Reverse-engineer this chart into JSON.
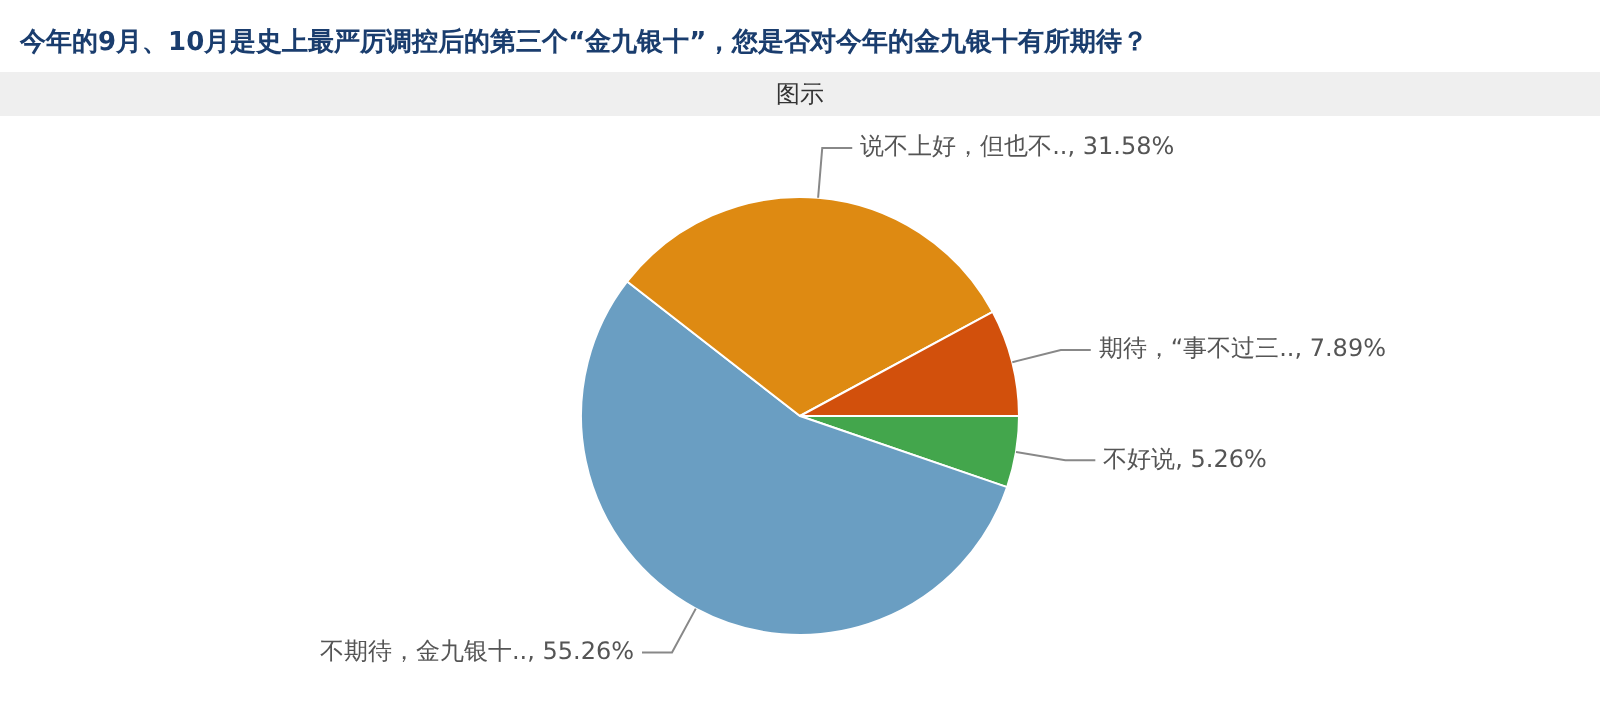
{
  "chart_data": {
    "type": "pie",
    "title": "今年的9月、10月是史上最严厉调控后的第三个“金九银十”，您是否对今年的金九银十有所期待？",
    "subtitle": "图示",
    "categories": [
      "不好说",
      "不期待，金九银十..",
      "说不上好，但也不..",
      "期待，“事不过三.."
    ],
    "values": [
      5.26,
      55.26,
      31.58,
      7.89
    ],
    "value_labels": [
      "5.26%",
      "55.26%",
      "31.58%",
      "7.89%"
    ],
    "colors": [
      "#43a64c",
      "#6a9ec2",
      "#de8a12",
      "#d2500c"
    ],
    "legend": false
  }
}
